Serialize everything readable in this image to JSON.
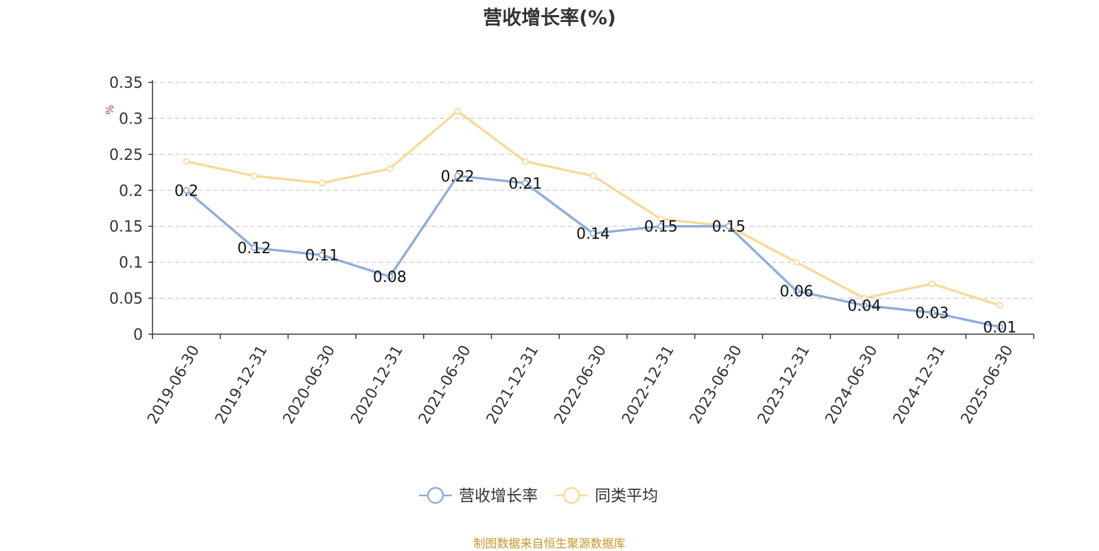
{
  "chart_data": {
    "type": "line",
    "title": "营收增长率(%)",
    "ylabel": "%",
    "xlabel": "",
    "ylim": [
      0,
      0.35
    ],
    "yticks": [
      "0",
      "0.05",
      "0.1",
      "0.15",
      "0.2",
      "0.25",
      "0.3",
      "0.35"
    ],
    "grid": true,
    "legend_position": "bottom",
    "categories": [
      "2019-06-30",
      "2019-12-31",
      "2020-06-30",
      "2020-12-31",
      "2021-06-30",
      "2021-12-31",
      "2022-06-30",
      "2022-12-31",
      "2023-06-30",
      "2023-12-31",
      "2024-06-30",
      "2024-12-31",
      "2025-06-30"
    ],
    "series": [
      {
        "name": "营收增长率",
        "color": "#8eaedb",
        "values": [
          0.2,
          0.12,
          0.11,
          0.08,
          0.22,
          0.21,
          0.14,
          0.15,
          0.15,
          0.06,
          0.04,
          0.03,
          0.01
        ],
        "labels": [
          "0.2",
          "0.12",
          "0.11",
          "0.08",
          "0.22",
          "0.21",
          "0.14",
          "0.15",
          "0.15",
          "0.06",
          "0.04",
          "0.03",
          "0.01"
        ]
      },
      {
        "name": "同类平均",
        "color": "#fad999",
        "values": [
          0.24,
          0.22,
          0.21,
          0.23,
          0.31,
          0.24,
          0.22,
          0.16,
          0.15,
          0.1,
          0.05,
          0.07,
          0.04
        ]
      }
    ]
  },
  "source_note": "制图数据来自恒生聚源数据库",
  "colors": {
    "axis": "#333333",
    "grid": "#cccccc",
    "ylabel": "#e03030",
    "source": "#c8962a"
  }
}
